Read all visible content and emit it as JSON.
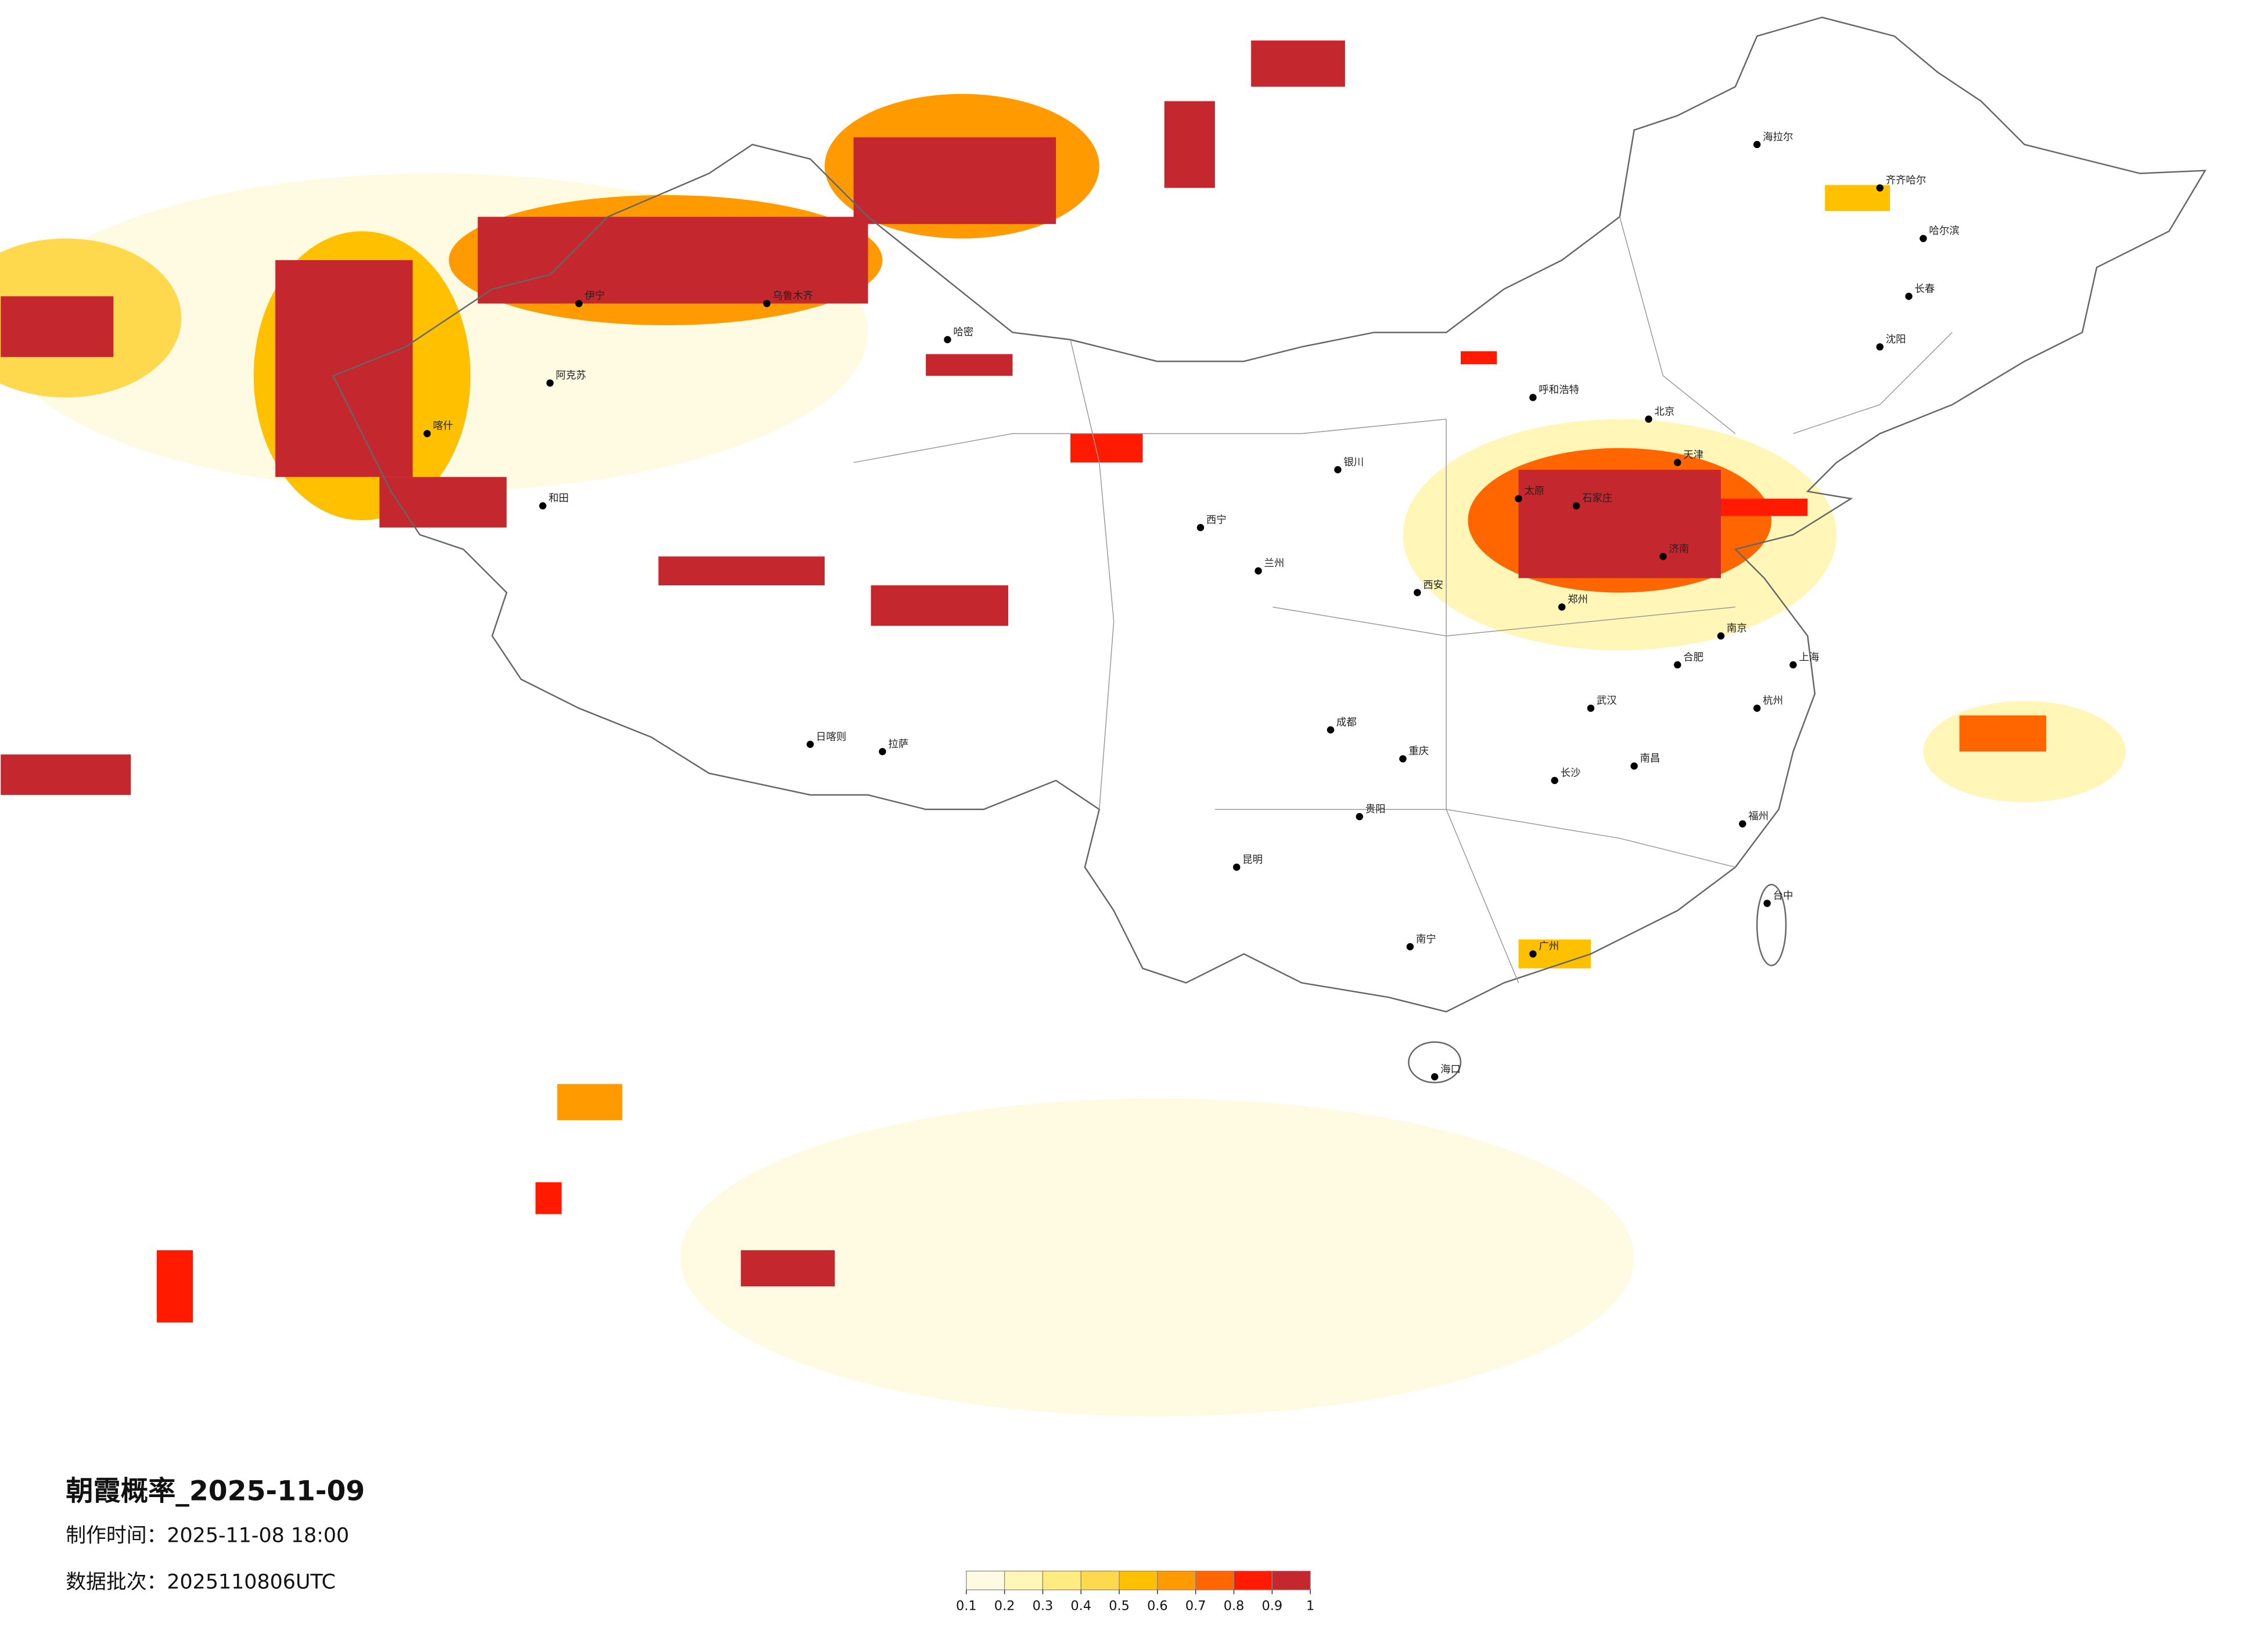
{
  "title": "朝霞概率_2025-11-09",
  "production_time": "制作时间：2025-11-08 18:00",
  "data_batch": "数据批次：2025110806UTC",
  "colorbar": {
    "ticks": [
      0.1,
      0.2,
      0.3,
      0.4,
      0.5,
      0.6,
      0.7,
      0.8,
      0.9,
      1
    ],
    "colors": [
      "#fffbe3",
      "#fff6b8",
      "#ffec80",
      "#ffd94d",
      "#ffc000",
      "#ff9a00",
      "#ff6600",
      "#ff1a00",
      "#c4282e"
    ]
  },
  "cities": [
    "乌鲁木齐",
    "伊宁",
    "阿克苏",
    "和田",
    "喀什",
    "哈密",
    "拉萨",
    "日喀则",
    "西宁",
    "兰州",
    "银川",
    "呼和浩特",
    "北京",
    "天津",
    "石家庄",
    "太原",
    "济南",
    "郑州",
    "西安",
    "成都",
    "重庆",
    "武汉",
    "长沙",
    "南昌",
    "合肥",
    "南京",
    "上海",
    "杭州",
    "福州",
    "广州",
    "南宁",
    "昆明",
    "贵阳",
    "海口",
    "台中",
    "哈尔滨",
    "长春",
    "沈阳",
    "海拉尔",
    "齐齐哈尔"
  ]
}
